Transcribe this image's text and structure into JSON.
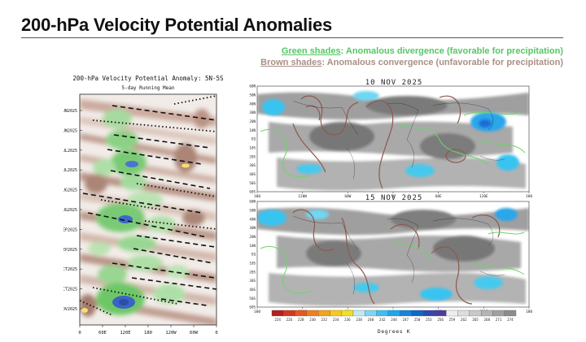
{
  "slide": {
    "title": "200-hPa Velocity Potential Anomalies",
    "legend_green_key": "Green shades",
    "legend_green_text": ": Anomalous divergence (favorable for precipitation)",
    "legend_brown_key": "Brown shades",
    "legend_brown_text": ": Anomalous convergence (unfavorable for precipitation)"
  },
  "hovmoller": {
    "title": "200-hPa Velocity Potential Anomaly: 5N-5S",
    "subtitle": "5-day Running Mean",
    "date_labels": [
      "1JUN2025",
      "16JUN2025",
      "1JUL2025",
      "16JUL2025",
      "1AUG2025",
      "16AUG2025",
      "1SEP2025",
      "16SEP2025",
      "1OCT2025",
      "16OCT2025",
      "1NOV2025"
    ],
    "lon_labels": [
      "0",
      "60E",
      "120E",
      "180",
      "120W",
      "60W",
      "0"
    ]
  },
  "maps": {
    "top_title": "10 NOV 2025",
    "bottom_title": "15 NOV 2025",
    "lat_labels": [
      "60N",
      "50N",
      "40N",
      "30N",
      "20N",
      "10N",
      "EQ",
      "10S",
      "20S",
      "30S",
      "40S",
      "50S",
      "60S"
    ],
    "lon_labels": [
      "180",
      "120W",
      "60W",
      "0",
      "60E",
      "120E",
      "180"
    ],
    "colorbar_labels": [
      "224",
      "226",
      "228",
      "230",
      "232",
      "234",
      "236",
      "238",
      "240",
      "242",
      "244",
      "247",
      "250",
      "253",
      "256",
      "259",
      "262",
      "265",
      "268",
      "271",
      "274"
    ],
    "colorbar_colors": [
      "#b22020",
      "#d23a1e",
      "#e45a1c",
      "#ee7f1c",
      "#f5a21a",
      "#f8c81c",
      "#f0e020",
      "#bfe9f5",
      "#7fd6f2",
      "#3fbff0",
      "#1ea6ec",
      "#1584dc",
      "#1166c8",
      "#2e48b4",
      "#4c3ca0",
      "#eeeeee",
      "#dddddd",
      "#c9c9c9",
      "#b5b5b5",
      "#a1a1a1",
      "#8c8c8c"
    ],
    "colorbar_units": "Degrees K"
  }
}
